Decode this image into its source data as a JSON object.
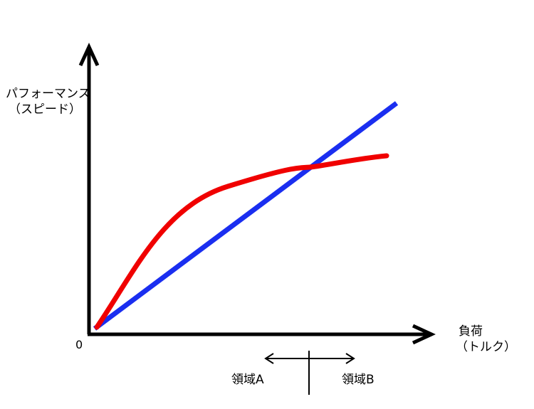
{
  "axes": {
    "y_label_line1": "パフォーマンス",
    "y_label_line2": "（スピード）",
    "x_label_line1": "負荷",
    "x_label_line2": "（トルク）",
    "origin": "0"
  },
  "regions": {
    "a_label": "領域A",
    "b_label": "領域B"
  },
  "colors": {
    "linear_curve": "#1a2ef0",
    "saturating_curve": "#f00000",
    "axes": "#000000"
  }
}
